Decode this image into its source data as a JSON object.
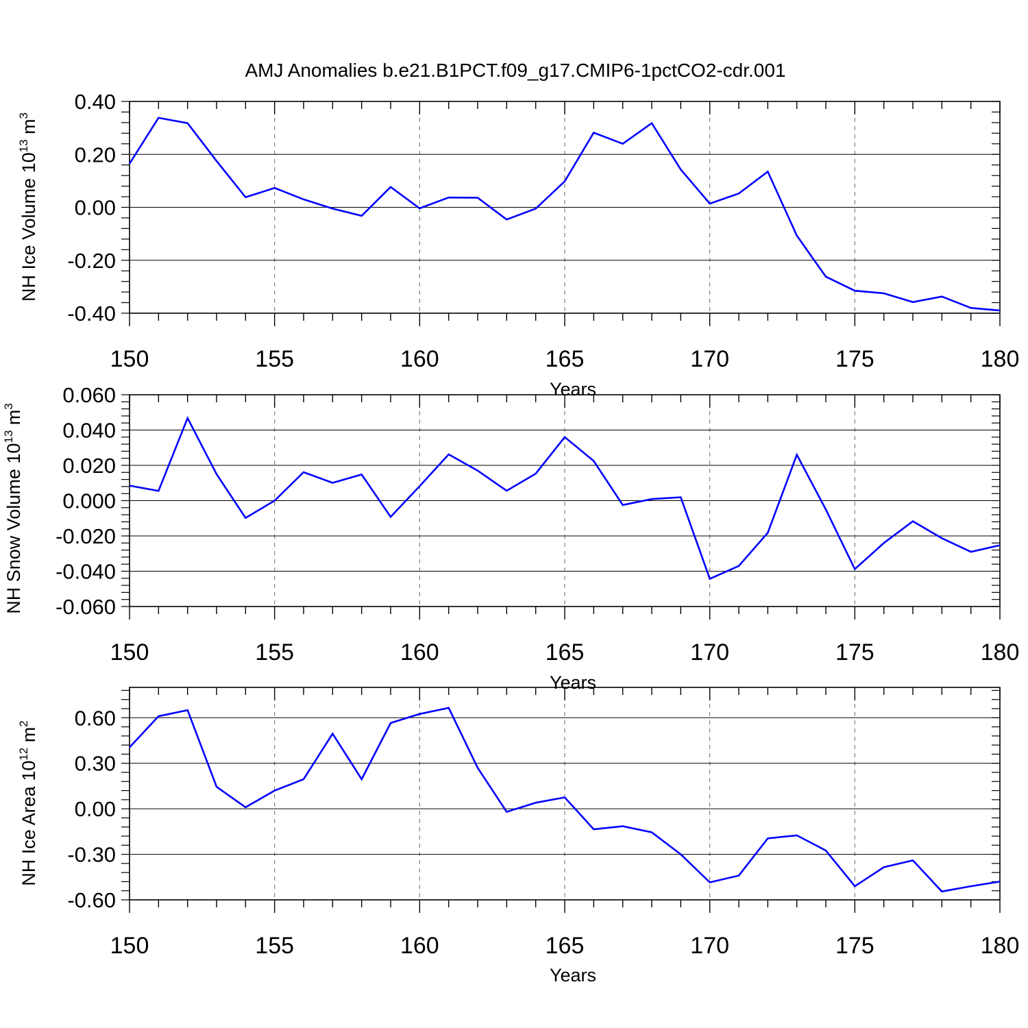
{
  "figure": {
    "title": "AMJ Anomalies b.e21.B1PCT.f09_g17.CMIP6-1pctCO2-cdr.001",
    "line_color": "#0000ff",
    "axis_color": "#000000",
    "grid_color": "#808080"
  },
  "chart_data": [
    {
      "type": "line",
      "title": "",
      "xlabel": "Years",
      "ylabel": "NH Ice Volume 10",
      "ylabel_power": "13",
      "ylabel_unit": "m",
      "ylabel_unit_power": "3",
      "xlim": [
        150,
        180
      ],
      "ylim": [
        -0.4,
        0.4
      ],
      "xticks": [
        150,
        155,
        160,
        165,
        170,
        175,
        180
      ],
      "xtick_labels": [
        "150",
        "155",
        "160",
        "165",
        "170",
        "175",
        "180"
      ],
      "yticks": [
        -0.4,
        -0.2,
        0.0,
        0.2,
        0.4
      ],
      "ytick_labels": [
        "-0.40",
        "-0.20",
        "0.00",
        "0.20",
        "0.40"
      ],
      "grid": "vertical dashed at major x ticks",
      "series": [
        {
          "name": "NH Ice Volume",
          "x": [
            150,
            151,
            152,
            153,
            154,
            155,
            156,
            157,
            158,
            159,
            160,
            161,
            162,
            163,
            164,
            165,
            166,
            167,
            168,
            169,
            170,
            171,
            172,
            173,
            174,
            175,
            176,
            177,
            178,
            179,
            180
          ],
          "y": [
            0.165,
            0.338,
            0.318,
            0.175,
            0.038,
            0.073,
            0.03,
            -0.005,
            -0.032,
            0.077,
            -0.004,
            0.037,
            0.036,
            -0.046,
            -0.005,
            0.098,
            0.282,
            0.24,
            0.318,
            0.143,
            0.014,
            0.052,
            0.135,
            -0.107,
            -0.262,
            -0.315,
            -0.325,
            -0.358,
            -0.337,
            -0.38,
            -0.39
          ]
        }
      ]
    },
    {
      "type": "line",
      "title": "",
      "xlabel": "Years",
      "ylabel": "NH Snow Volume 10",
      "ylabel_power": "13",
      "ylabel_unit": "m",
      "ylabel_unit_power": "3",
      "xlim": [
        150,
        180
      ],
      "ylim": [
        -0.06,
        0.06
      ],
      "xticks": [
        150,
        155,
        160,
        165,
        170,
        175,
        180
      ],
      "xtick_labels": [
        "150",
        "155",
        "160",
        "165",
        "170",
        "175",
        "180"
      ],
      "yticks": [
        -0.06,
        -0.04,
        -0.02,
        0.0,
        0.02,
        0.04,
        0.06
      ],
      "ytick_labels": [
        "-0.060",
        "-0.040",
        "-0.020",
        "0.000",
        "0.020",
        "0.040",
        "0.060"
      ],
      "grid": "vertical dashed at major x ticks",
      "series": [
        {
          "name": "NH Snow Volume",
          "x": [
            150,
            151,
            152,
            153,
            154,
            155,
            156,
            157,
            158,
            159,
            160,
            161,
            162,
            163,
            164,
            165,
            166,
            167,
            168,
            169,
            170,
            171,
            172,
            173,
            174,
            175,
            176,
            177,
            178,
            179,
            180
          ],
          "y": [
            0.0085,
            0.0055,
            0.0468,
            0.015,
            -0.0098,
            0.0,
            0.0161,
            0.0101,
            0.0148,
            -0.0092,
            0.0082,
            0.0262,
            0.017,
            0.0056,
            0.0153,
            0.036,
            0.0225,
            -0.0025,
            0.0009,
            0.0019,
            -0.0443,
            -0.037,
            -0.0182,
            0.026,
            -0.005,
            -0.0388,
            -0.024,
            -0.0117,
            -0.0213,
            -0.029,
            -0.0253
          ]
        }
      ]
    },
    {
      "type": "line",
      "title": "",
      "xlabel": "Years",
      "ylabel": "NH Ice Area 10",
      "ylabel_power": "12",
      "ylabel_unit": "m",
      "ylabel_unit_power": "2",
      "xlim": [
        150,
        180
      ],
      "ylim": [
        -0.6,
        0.8
      ],
      "xticks": [
        150,
        155,
        160,
        165,
        170,
        175,
        180
      ],
      "xtick_labels": [
        "150",
        "155",
        "160",
        "165",
        "170",
        "175",
        "180"
      ],
      "yticks": [
        -0.6,
        -0.3,
        0.0,
        0.3,
        0.6
      ],
      "ytick_labels": [
        "-0.60",
        "-0.30",
        "0.00",
        "0.30",
        "0.60"
      ],
      "grid": "vertical dashed at major x ticks",
      "series": [
        {
          "name": "NH Ice Area",
          "x": [
            150,
            151,
            152,
            153,
            154,
            155,
            156,
            157,
            158,
            159,
            160,
            161,
            162,
            163,
            164,
            165,
            166,
            167,
            168,
            169,
            170,
            171,
            172,
            173,
            174,
            175,
            176,
            177,
            178,
            179,
            180
          ],
          "y": [
            0.405,
            0.61,
            0.65,
            0.145,
            0.01,
            0.12,
            0.195,
            0.495,
            0.195,
            0.565,
            0.625,
            0.665,
            0.27,
            -0.02,
            0.04,
            0.075,
            -0.135,
            -0.115,
            -0.155,
            -0.3,
            -0.485,
            -0.44,
            -0.195,
            -0.175,
            -0.275,
            -0.51,
            -0.385,
            -0.34,
            -0.545,
            -0.51,
            -0.48
          ]
        }
      ]
    }
  ]
}
